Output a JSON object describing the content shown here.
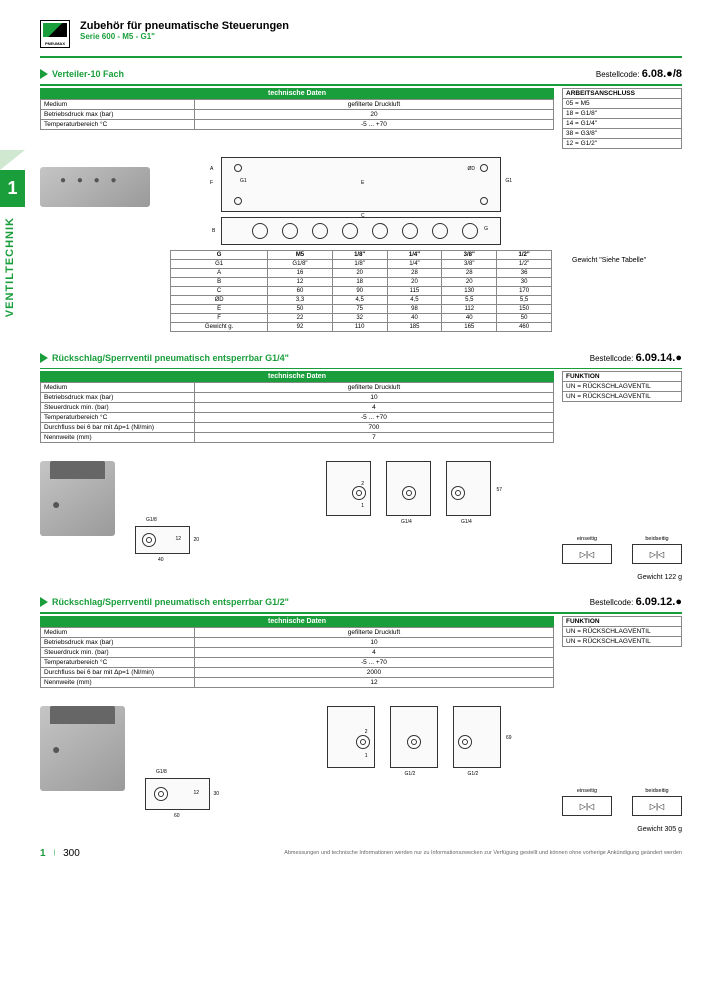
{
  "header": {
    "title": "Zubehör für pneumatische Steuerungen",
    "subtitle": "Serie 600 - M5 - G1\""
  },
  "sidetab": {
    "num": "1",
    "text": "VENTILTECHNIK"
  },
  "sec1": {
    "title": "Verteiler-10 Fach",
    "bestell_label": "Bestellcode:",
    "bestell_code": "6.08.●/8",
    "tech_title": "technische Daten",
    "rows": [
      [
        "Medium",
        "gefilterte Druckluft"
      ],
      [
        "Betriebsdruck max (bar)",
        "20"
      ],
      [
        "Temperaturbereich °C",
        "-5 ... +70"
      ]
    ],
    "side_header": "ARBEITSANSCHLUSS",
    "side_rows": [
      [
        "05 =",
        "M5"
      ],
      [
        "18 =",
        "G1/8\""
      ],
      [
        "14 =",
        "G1/4\""
      ],
      [
        "38 =",
        "G3/8\""
      ],
      [
        "12 =",
        "G1/2\""
      ]
    ],
    "dim_headers": [
      "G",
      "M5",
      "1/8\"",
      "1/4\"",
      "3/8\"",
      "1/2\""
    ],
    "dim_rows": [
      [
        "G1",
        "G1/8\"",
        "1/8\"",
        "1/4\"",
        "3/8\"",
        "1/2\""
      ],
      [
        "A",
        "16",
        "20",
        "28",
        "28",
        "36"
      ],
      [
        "B",
        "12",
        "18",
        "20",
        "20",
        "30"
      ],
      [
        "C",
        "60",
        "90",
        "115",
        "130",
        "170"
      ],
      [
        "ØD",
        "3,3",
        "4,5",
        "4,5",
        "5,5",
        "5,5"
      ],
      [
        "E",
        "50",
        "75",
        "98",
        "112",
        "150"
      ],
      [
        "F",
        "22",
        "32",
        "40",
        "40",
        "50"
      ],
      [
        "Gewicht g.",
        "92",
        "110",
        "185",
        "165",
        "460"
      ]
    ],
    "weight_note": "Gewicht \"Siehe Tabelle\""
  },
  "sec2": {
    "title": "Rückschlag/Sperrventil pneumatisch entsperrbar G1/4\"",
    "bestell_label": "Bestellcode:",
    "bestell_code": "6.09.14.●",
    "tech_title": "technische Daten",
    "rows": [
      [
        "Medium",
        "gefilterte Druckluft"
      ],
      [
        "Betriebsdruck max (bar)",
        "10"
      ],
      [
        "Steuerdruck min. (bar)",
        "4"
      ],
      [
        "Temperaturbereich °C",
        "-5 ... +70"
      ],
      [
        "Durchfluss bei 6 bar mit Δp=1 (Nl/min)",
        "700"
      ],
      [
        "Nennweite (mm)",
        "7"
      ]
    ],
    "side_header": "FUNKTION",
    "side_rows": [
      [
        "UN = RÜCKSCHLAGVENTIL"
      ],
      [
        "UN = RÜCKSCHLAGVENTIL"
      ]
    ],
    "dims": {
      "port1": "G1/4",
      "port2": "G1/8",
      "w": "40",
      "h": "20",
      "h2": "57",
      "x": "12"
    },
    "weight": "Gewicht 122 g",
    "sym1": "einseitig",
    "sym2": "beidseitig"
  },
  "sec3": {
    "title": "Rückschlag/Sperrventil pneumatisch entsperrbar G1/2\"",
    "bestell_label": "Bestellcode:",
    "bestell_code": "6.09.12.●",
    "tech_title": "technische Daten",
    "rows": [
      [
        "Medium",
        "gefilterte Druckluft"
      ],
      [
        "Betriebsdruck max (bar)",
        "10"
      ],
      [
        "Steuerdruck min. (bar)",
        "4"
      ],
      [
        "Temperaturbereich °C",
        "-5 ... +70"
      ],
      [
        "Durchfluss bei 6 bar mit Δp=1 (Nl/min)",
        "2000"
      ],
      [
        "Nennweite (mm)",
        "12"
      ]
    ],
    "side_header": "FUNKTION",
    "side_rows": [
      [
        "UN = RÜCKSCHLAGVENTIL"
      ],
      [
        "UN = RÜCKSCHLAGVENTIL"
      ]
    ],
    "dims": {
      "port1": "G1/2",
      "port2": "G1/8",
      "w": "60",
      "h": "30",
      "h2": "69",
      "x": "12"
    },
    "weight": "Gewicht 305 g",
    "sym1": "einseitig",
    "sym2": "beidseitig"
  },
  "footer": {
    "pg1": "1",
    "pg2": "300",
    "text": "Abmessungen und technische Informationen werden nur zu Informationszwecken zur Verfügung gestellt und können ohne vorherige Ankündigung geändert werden"
  },
  "colors": {
    "accent": "#1a9e3b"
  }
}
